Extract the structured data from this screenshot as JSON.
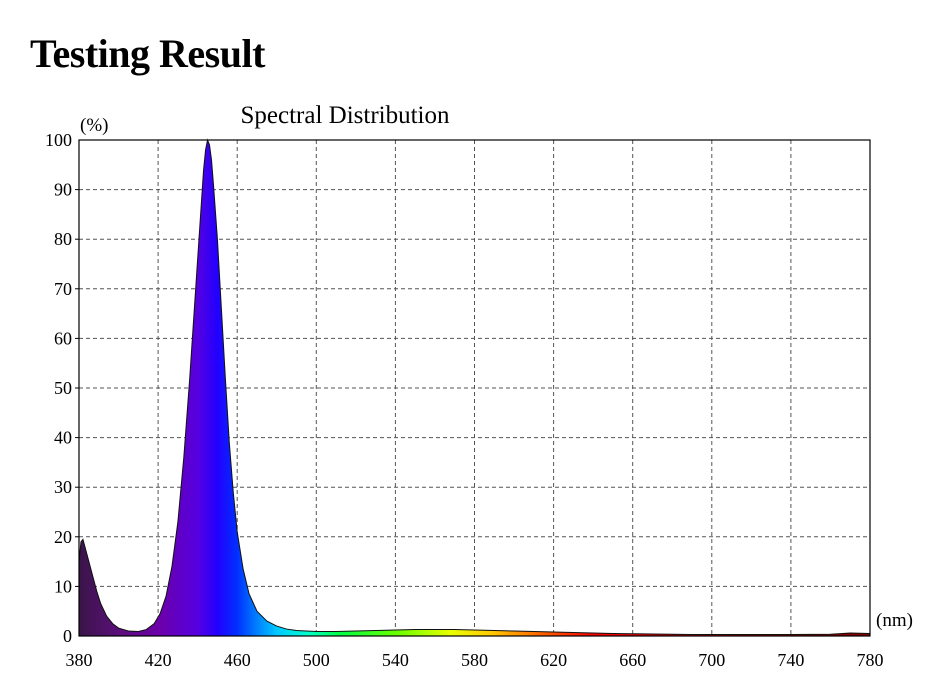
{
  "page": {
    "heading": "Testing Result"
  },
  "chart_data": {
    "type": "area",
    "title": "Spectral Distribution",
    "xlabel": "(nm)",
    "ylabel": "(%)",
    "xlim": [
      380,
      780
    ],
    "ylim": [
      0,
      100
    ],
    "x_ticks": [
      380,
      420,
      460,
      500,
      540,
      580,
      620,
      660,
      700,
      740,
      780
    ],
    "y_ticks": [
      0,
      10,
      20,
      30,
      40,
      50,
      60,
      70,
      80,
      90,
      100
    ],
    "grid": true,
    "fill": "spectral-rainbow",
    "series": [
      {
        "x": [
          380,
          381,
          382,
          383,
          385,
          387,
          389,
          391,
          394,
          397,
          400,
          405,
          410,
          414,
          418,
          421,
          424,
          427,
          430,
          433,
          436,
          438,
          440,
          442,
          443,
          444,
          445,
          446,
          447,
          448,
          450,
          452,
          454,
          456,
          458,
          460,
          463,
          466,
          470,
          475,
          480,
          485,
          490,
          495,
          500,
          510,
          520,
          530,
          540,
          550,
          560,
          570,
          580,
          590,
          600,
          610,
          620,
          630,
          640,
          650,
          660,
          670,
          680,
          690,
          700,
          720,
          740,
          760,
          770,
          780
        ],
        "y": [
          15,
          19,
          19.5,
          18,
          15,
          12,
          9,
          6.5,
          4,
          2.5,
          1.6,
          1.0,
          0.9,
          1.3,
          2.5,
          4.5,
          8,
          14,
          23,
          36,
          52,
          64,
          76,
          88,
          94,
          98,
          100,
          99,
          96,
          91,
          80,
          66,
          52,
          39,
          29,
          21,
          13.5,
          8.5,
          5,
          3,
          2,
          1.4,
          1.1,
          1.0,
          0.9,
          0.9,
          1.0,
          1.1,
          1.2,
          1.3,
          1.3,
          1.3,
          1.2,
          1.1,
          1.0,
          0.9,
          0.8,
          0.7,
          0.6,
          0.5,
          0.45,
          0.4,
          0.35,
          0.3,
          0.3,
          0.3,
          0.3,
          0.35,
          0.6,
          0.5
        ]
      }
    ]
  }
}
